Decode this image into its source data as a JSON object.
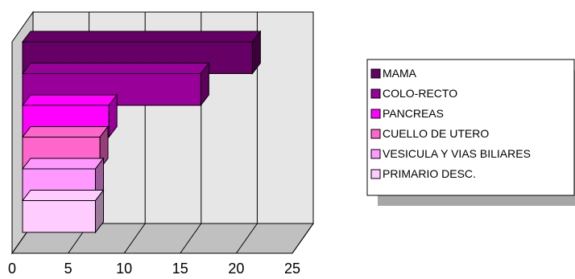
{
  "chart_data": {
    "type": "bar",
    "orientation": "horizontal",
    "three_d": true,
    "categories": [
      "MAMA",
      "COLO-RECTO",
      "PANCREAS",
      "CUELLO DE UTERO",
      "VESICULA Y VIAS BILIARES",
      "PRIMARIO DESC."
    ],
    "values": [
      20.5,
      15.9,
      7.7,
      6.9,
      6.5,
      6.5
    ],
    "colors": [
      "#660066",
      "#990099",
      "#ff00ff",
      "#ff66cc",
      "#ff99ff",
      "#ffccff"
    ],
    "xlim": [
      0,
      25
    ],
    "x_ticks": [
      "0",
      "5",
      "10",
      "15",
      "20",
      "25"
    ],
    "grid": true,
    "legend_position": "right",
    "title": "",
    "xlabel": "",
    "ylabel": ""
  }
}
